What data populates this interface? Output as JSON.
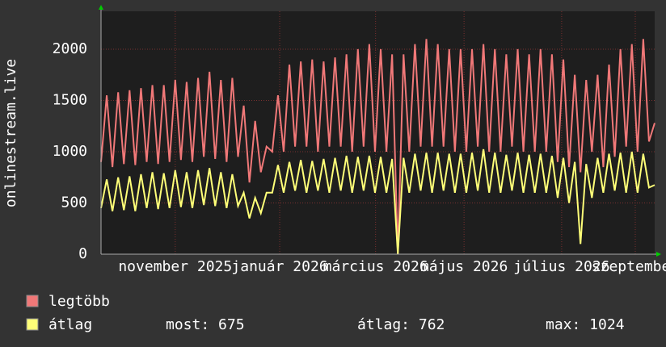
{
  "chart_data": {
    "type": "line",
    "y_label": "onlinestream.live",
    "ylim": [
      0,
      2370
    ],
    "yticks": [
      0,
      500,
      1000,
      1500,
      2000
    ],
    "xlim": [
      0,
      97
    ],
    "xticks": [
      {
        "value": 13,
        "label": "november 2025"
      },
      {
        "value": 31.3,
        "label": "január 2026"
      },
      {
        "value": 48.1,
        "label": "március 2026"
      },
      {
        "value": 63.6,
        "label": "május 2026"
      },
      {
        "value": 80.7,
        "label": "július 2026"
      },
      {
        "value": 93.6,
        "label": "szeptember"
      }
    ],
    "grid": true,
    "series": [
      {
        "name": "legtöbb",
        "color": "#f07878",
        "values": [
          900,
          1550,
          850,
          1580,
          880,
          1600,
          870,
          1620,
          900,
          1650,
          880,
          1650,
          900,
          1700,
          920,
          1680,
          900,
          1720,
          950,
          1780,
          930,
          1700,
          900,
          1720,
          950,
          1450,
          700,
          1300,
          800,
          1050,
          1000,
          1550,
          1000,
          1850,
          1050,
          1880,
          1050,
          1900,
          1000,
          1880,
          1050,
          1920,
          1050,
          1950,
          1000,
          2000,
          1050,
          2050,
          1000,
          2000,
          1000,
          1950,
          0,
          1950,
          1000,
          2050,
          1050,
          2100,
          1050,
          2050,
          1050,
          2000,
          1000,
          2000,
          1000,
          2000,
          1050,
          2050,
          1000,
          2000,
          1000,
          1950,
          1050,
          2000,
          1000,
          1950,
          1000,
          2000,
          1000,
          1950,
          900,
          1900,
          850,
          1750,
          800,
          1700,
          1000,
          1750,
          850,
          1850,
          950,
          2000,
          1050,
          2050,
          1000,
          2100,
          1100,
          1280
        ]
      },
      {
        "name": "átlag",
        "color": "#ffff78",
        "values": [
          450,
          730,
          420,
          750,
          430,
          760,
          420,
          780,
          450,
          800,
          440,
          790,
          450,
          820,
          460,
          800,
          450,
          820,
          480,
          840,
          470,
          800,
          450,
          780,
          470,
          600,
          350,
          550,
          400,
          600,
          600,
          870,
          600,
          900,
          620,
          920,
          600,
          910,
          620,
          930,
          600,
          940,
          620,
          960,
          600,
          950,
          620,
          960,
          600,
          950,
          600,
          930,
          0,
          940,
          600,
          980,
          620,
          990,
          600,
          990,
          620,
          980,
          600,
          980,
          600,
          990,
          620,
          1024,
          600,
          990,
          600,
          970,
          620,
          990,
          600,
          970,
          600,
          980,
          600,
          960,
          550,
          940,
          500,
          900,
          100,
          880,
          550,
          940,
          600,
          980,
          620,
          990,
          600,
          1000,
          600,
          980,
          650,
          675
        ]
      }
    ],
    "stats": [
      "most: 675",
      "átlag: 762",
      "max: 1024"
    ]
  }
}
